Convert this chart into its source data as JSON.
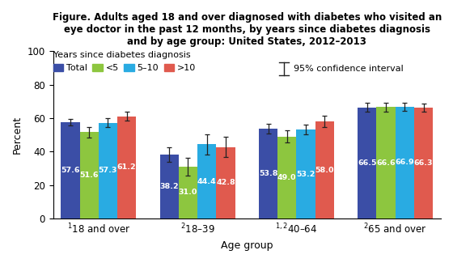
{
  "title": "Figure. Adults aged 18 and over diagnosed with diabetes who visited an\neye doctor in the past 12 months, by years since diabetes diagnosis\nand by age group: United States, 2012–2013",
  "xlabel": "Age group",
  "ylabel": "Percent",
  "ylim": [
    0,
    100
  ],
  "yticks": [
    0,
    20,
    40,
    60,
    80,
    100
  ],
  "age_groups": [
    "$^1$18 and over",
    "$^2$18–39",
    "$^{1,2}$40–64",
    "$^2$65 and over"
  ],
  "series_labels": [
    "Total",
    "<5",
    "5–10",
    ">10"
  ],
  "bar_colors": [
    "#3b4ea6",
    "#8dc63f",
    "#29abe2",
    "#e05a4e"
  ],
  "values": [
    [
      57.6,
      51.6,
      57.3,
      61.2
    ],
    [
      38.2,
      31.0,
      44.4,
      42.8
    ],
    [
      53.8,
      49.0,
      53.2,
      58.0
    ],
    [
      66.5,
      66.6,
      66.9,
      66.3
    ]
  ],
  "errors": [
    [
      2.0,
      3.0,
      2.5,
      2.5
    ],
    [
      4.5,
      5.5,
      6.0,
      6.0
    ],
    [
      3.0,
      3.5,
      3.0,
      3.5
    ],
    [
      2.5,
      2.5,
      2.5,
      2.5
    ]
  ],
  "legend_title": "Years since diabetes diagnosis",
  "ci_label": "95% confidence interval",
  "bar_width": 0.19,
  "background_color": "#ffffff",
  "text_color": "#000000",
  "title_fontsize": 8.5,
  "axis_fontsize": 9,
  "tick_fontsize": 8.5,
  "bar_label_fontsize": 6.8,
  "legend_fontsize": 8.0
}
